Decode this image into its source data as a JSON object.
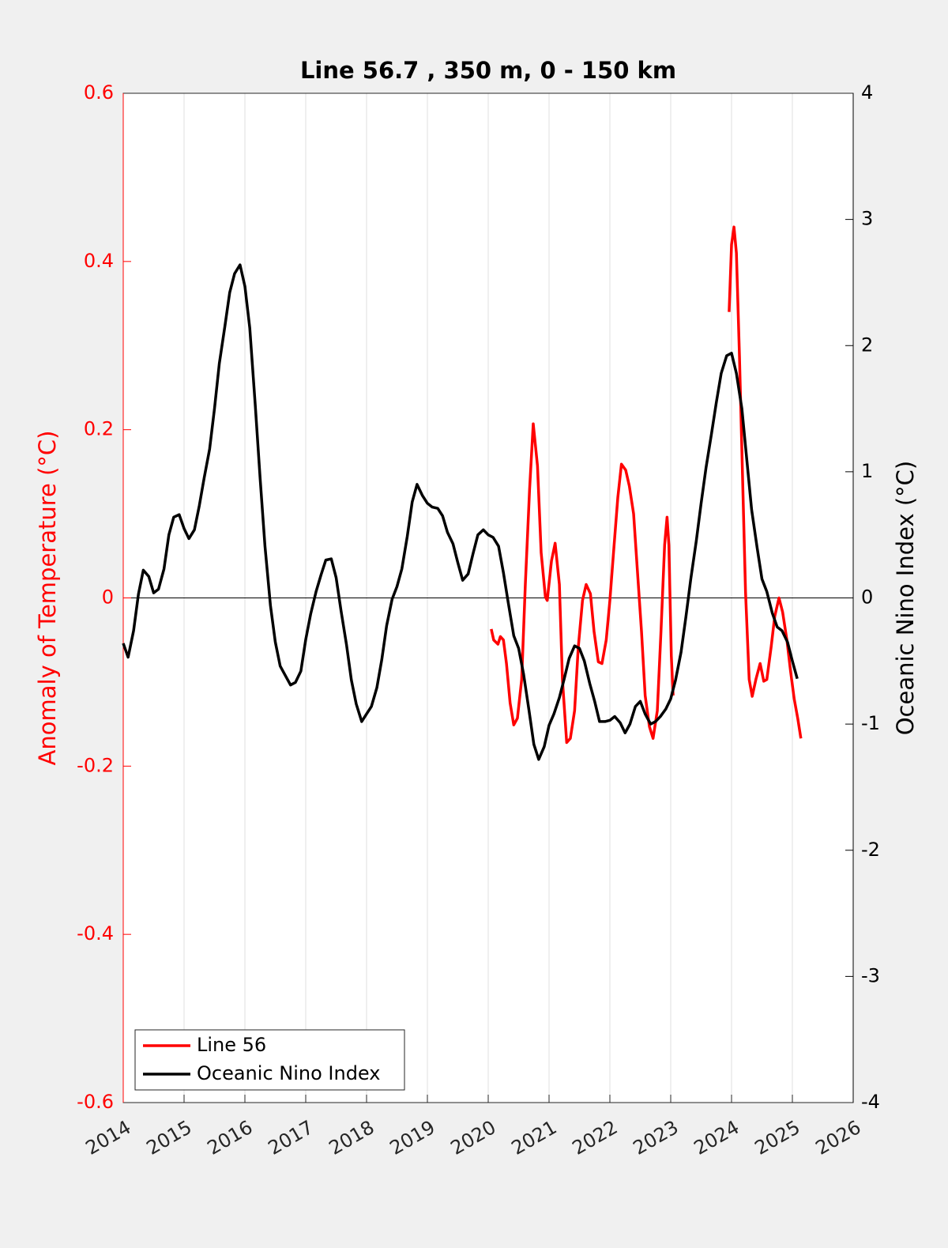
{
  "chart_data": {
    "type": "line",
    "title": "Line 56.7 , 350 m, 0 - 150 km",
    "ylabel": "Anomaly of Temperature (°C)",
    "y2label": "Oceanic Nino Index (°C)",
    "ycolor": "#ff0000",
    "y2color": "#000000",
    "xlim": [
      2014,
      2026
    ],
    "xticks": [
      2014,
      2015,
      2016,
      2017,
      2018,
      2019,
      2020,
      2021,
      2022,
      2023,
      2024,
      2025,
      2026
    ],
    "ylim": [
      -0.6,
      0.6
    ],
    "yticks": [
      -0.6,
      -0.4,
      -0.2,
      0,
      0.2,
      0.4,
      0.6
    ],
    "y2lim": [
      -4,
      4
    ],
    "y2ticks": [
      -4,
      -3,
      -2,
      -1,
      0,
      1,
      2,
      3,
      4
    ],
    "xgrid": true,
    "legend": "lower-left",
    "series": [
      {
        "name": "Line 56",
        "color": "#ff0000",
        "x": [
          2020.05,
          2020.09,
          2020.16,
          2020.2,
          2020.25,
          2020.3,
          2020.36,
          2020.42,
          2020.48,
          2020.55,
          2020.61,
          2020.68,
          2020.74,
          2020.81,
          2020.87,
          2020.94,
          2020.97,
          2021.04,
          2021.1,
          2021.17,
          2021.22,
          2021.29,
          2021.35,
          2021.42,
          2021.48,
          2021.55,
          2021.61,
          2021.68,
          2021.74,
          2021.81,
          2021.87,
          2021.94,
          2022.0,
          2022.06,
          2022.13,
          2022.19,
          2022.26,
          2022.32,
          2022.39,
          2022.45,
          2022.52,
          2022.58,
          2022.65,
          2022.71,
          2022.78,
          2022.84,
          2022.9,
          2022.94,
          2022.97,
          2023.01,
          2023.04,
          2023.5,
          2023.96,
          2024.0,
          2024.04,
          2024.08,
          2024.13,
          2024.18,
          2024.23,
          2024.29,
          2024.34,
          2024.4,
          2024.47,
          2024.53,
          2024.58,
          2024.65,
          2024.71,
          2024.78,
          2024.84,
          2024.91,
          2024.97,
          2025.03,
          2025.09,
          2025.14
        ],
        "values": [
          -0.037,
          -0.05,
          -0.055,
          -0.046,
          -0.05,
          -0.078,
          -0.125,
          -0.151,
          -0.143,
          -0.097,
          0.016,
          0.129,
          0.207,
          0.157,
          0.054,
          0.001,
          -0.003,
          0.044,
          0.065,
          0.016,
          -0.097,
          -0.172,
          -0.167,
          -0.134,
          -0.059,
          -0.003,
          0.016,
          0.005,
          -0.04,
          -0.076,
          -0.078,
          -0.05,
          -0.003,
          0.054,
          0.119,
          0.159,
          0.152,
          0.133,
          0.1,
          0.035,
          -0.04,
          -0.116,
          -0.153,
          -0.167,
          -0.134,
          -0.04,
          0.063,
          0.096,
          0.063,
          -0.069,
          -0.116,
          null,
          0.34,
          0.42,
          0.441,
          0.41,
          0.288,
          0.147,
          0.007,
          -0.097,
          -0.117,
          -0.097,
          -0.078,
          -0.099,
          -0.097,
          -0.059,
          -0.022,
          0,
          -0.017,
          -0.05,
          -0.087,
          -0.12,
          -0.144,
          -0.167
        ]
      },
      {
        "name": "Oceanic Nino Index",
        "color": "#000000",
        "axis": "y2",
        "x": [
          2014.0,
          2014.08,
          2014.17,
          2014.25,
          2014.33,
          2014.42,
          2014.5,
          2014.58,
          2014.67,
          2014.75,
          2014.83,
          2014.92,
          2015.0,
          2015.08,
          2015.17,
          2015.25,
          2015.33,
          2015.42,
          2015.5,
          2015.58,
          2015.67,
          2015.75,
          2015.83,
          2015.92,
          2016.0,
          2016.08,
          2016.17,
          2016.25,
          2016.33,
          2016.42,
          2016.5,
          2016.58,
          2016.67,
          2016.75,
          2016.83,
          2016.92,
          2017.0,
          2017.08,
          2017.17,
          2017.25,
          2017.33,
          2017.42,
          2017.5,
          2017.58,
          2017.67,
          2017.75,
          2017.83,
          2017.92,
          2018.0,
          2018.08,
          2018.17,
          2018.25,
          2018.33,
          2018.42,
          2018.5,
          2018.58,
          2018.67,
          2018.75,
          2018.83,
          2018.92,
          2019.0,
          2019.08,
          2019.17,
          2019.25,
          2019.33,
          2019.42,
          2019.5,
          2019.58,
          2019.67,
          2019.75,
          2019.83,
          2019.92,
          2020.0,
          2020.08,
          2020.17,
          2020.25,
          2020.33,
          2020.42,
          2020.5,
          2020.58,
          2020.67,
          2020.75,
          2020.83,
          2020.92,
          2021.0,
          2021.08,
          2021.17,
          2021.25,
          2021.33,
          2021.42,
          2021.5,
          2021.58,
          2021.67,
          2021.75,
          2021.83,
          2021.92,
          2022.0,
          2022.08,
          2022.17,
          2022.25,
          2022.33,
          2022.42,
          2022.5,
          2022.58,
          2022.67,
          2022.75,
          2022.83,
          2022.92,
          2023.0,
          2023.08,
          2023.17,
          2023.25,
          2023.33,
          2023.42,
          2023.5,
          2023.58,
          2023.67,
          2023.75,
          2023.83,
          2023.92,
          2024.0,
          2024.08,
          2024.17,
          2024.25,
          2024.33,
          2024.42,
          2024.5,
          2024.58,
          2024.67,
          2024.75,
          2024.83,
          2024.92,
          2025.0,
          2025.08
        ],
        "values": [
          -0.36,
          -0.47,
          -0.26,
          0.03,
          0.22,
          0.17,
          0.04,
          0.07,
          0.23,
          0.5,
          0.64,
          0.66,
          0.55,
          0.47,
          0.54,
          0.73,
          0.95,
          1.18,
          1.5,
          1.86,
          2.15,
          2.42,
          2.57,
          2.64,
          2.47,
          2.14,
          1.53,
          0.95,
          0.41,
          -0.06,
          -0.35,
          -0.54,
          -0.62,
          -0.69,
          -0.67,
          -0.58,
          -0.33,
          -0.13,
          0.05,
          0.18,
          0.3,
          0.31,
          0.16,
          -0.1,
          -0.37,
          -0.65,
          -0.84,
          -0.98,
          -0.92,
          -0.86,
          -0.71,
          -0.49,
          -0.22,
          -0.01,
          0.09,
          0.23,
          0.49,
          0.76,
          0.9,
          0.81,
          0.75,
          0.72,
          0.71,
          0.65,
          0.52,
          0.43,
          0.28,
          0.14,
          0.19,
          0.35,
          0.5,
          0.54,
          0.5,
          0.48,
          0.41,
          0.2,
          -0.04,
          -0.3,
          -0.4,
          -0.6,
          -0.89,
          -1.16,
          -1.28,
          -1.18,
          -1.01,
          -0.92,
          -0.79,
          -0.64,
          -0.48,
          -0.38,
          -0.4,
          -0.5,
          -0.68,
          -0.82,
          -0.98,
          -0.98,
          -0.97,
          -0.94,
          -0.99,
          -1.07,
          -1.0,
          -0.86,
          -0.82,
          -0.92,
          -1.0,
          -0.98,
          -0.94,
          -0.88,
          -0.8,
          -0.65,
          -0.43,
          -0.15,
          0.15,
          0.45,
          0.75,
          1.03,
          1.3,
          1.55,
          1.78,
          1.92,
          1.94,
          1.78,
          1.5,
          1.1,
          0.7,
          0.4,
          0.15,
          0.05,
          -0.12,
          -0.23,
          -0.26,
          -0.35,
          -0.5,
          -0.64
        ]
      }
    ]
  }
}
